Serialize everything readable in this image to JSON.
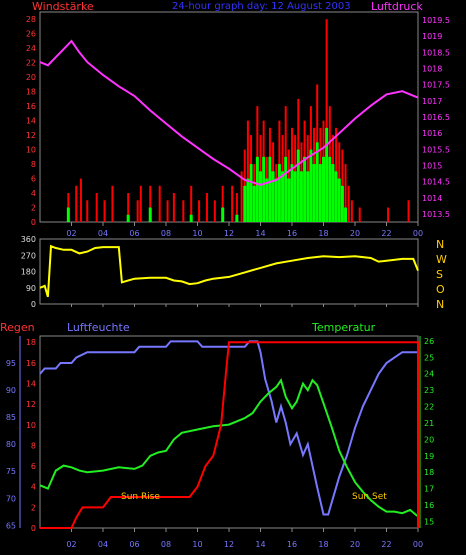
{
  "header": {
    "left_title": "Windstärke",
    "center_title": "24-hour graph day: 12 August 2003",
    "right_title": "Luftdruck"
  },
  "middle": {
    "direction_labels": [
      "N",
      "W",
      "S",
      "O",
      "N"
    ]
  },
  "bottom_header": {
    "left_title": "Regen",
    "mid_title": "Luftfeuchte",
    "right_title": "Temperatur"
  },
  "annotations": {
    "sun_rise": "Sun Rise",
    "sun_set": "Sun Set"
  },
  "colors": {
    "wind_gust": "#ff0000",
    "wind_avg": "#00ff00",
    "pressure": "#ff33ff",
    "direction": "#ffff00",
    "humidity": "#7777ff",
    "temperature": "#22ee22",
    "rain": "#ff0000",
    "axis_left_top": "#ff3333",
    "axis_right_top": "#ff33ff",
    "axis_temp": "#22ee22",
    "axis_hum": "#7777ff",
    "grid": "#444444",
    "dir_labels": "#ffcc00"
  },
  "chart_data": [
    {
      "type": "bar",
      "name": "wind",
      "x_ticks": [
        "02",
        "04",
        "06",
        "08",
        "10",
        "12",
        "14",
        "16",
        "18",
        "20",
        "22",
        "00"
      ],
      "xlim": [
        0,
        24
      ],
      "y_left_ticks": [
        0,
        2,
        4,
        6,
        8,
        10,
        12,
        14,
        16,
        18,
        20,
        22,
        24,
        26,
        28
      ],
      "ylim_left": [
        0,
        29
      ],
      "y_right_ticks": [
        1013.5,
        1014,
        1014.5,
        1015,
        1015.5,
        1016,
        1016.5,
        1017,
        1017.5,
        1018,
        1018.5,
        1019,
        1019.5
      ],
      "ylim_right": [
        1013.25,
        1019.75
      ],
      "gust_bars": [
        [
          1.8,
          4
        ],
        [
          2.3,
          5
        ],
        [
          2.6,
          6
        ],
        [
          3.0,
          3
        ],
        [
          3.6,
          4
        ],
        [
          4.1,
          3
        ],
        [
          4.6,
          5
        ],
        [
          5.6,
          4
        ],
        [
          6.2,
          3
        ],
        [
          6.4,
          5
        ],
        [
          7.0,
          5
        ],
        [
          7.6,
          5
        ],
        [
          8.1,
          3
        ],
        [
          8.5,
          4
        ],
        [
          9.1,
          3
        ],
        [
          9.6,
          5
        ],
        [
          10.1,
          3
        ],
        [
          10.6,
          4
        ],
        [
          11.1,
          3
        ],
        [
          11.6,
          5
        ],
        [
          12.2,
          5
        ],
        [
          12.5,
          4
        ],
        [
          12.8,
          7
        ],
        [
          13.0,
          10
        ],
        [
          13.2,
          14
        ],
        [
          13.4,
          12
        ],
        [
          13.6,
          8
        ],
        [
          13.8,
          16
        ],
        [
          14.0,
          12
        ],
        [
          14.2,
          14
        ],
        [
          14.4,
          9
        ],
        [
          14.6,
          13
        ],
        [
          14.8,
          11
        ],
        [
          15.0,
          8
        ],
        [
          15.2,
          14
        ],
        [
          15.4,
          12
        ],
        [
          15.6,
          16
        ],
        [
          15.8,
          10
        ],
        [
          16.0,
          13
        ],
        [
          16.2,
          12
        ],
        [
          16.4,
          17
        ],
        [
          16.6,
          11
        ],
        [
          16.8,
          14
        ],
        [
          17.0,
          12
        ],
        [
          17.2,
          16
        ],
        [
          17.4,
          13
        ],
        [
          17.6,
          19
        ],
        [
          17.8,
          13
        ],
        [
          18.0,
          14
        ],
        [
          18.2,
          28
        ],
        [
          18.4,
          16
        ],
        [
          18.6,
          12
        ],
        [
          18.8,
          13
        ],
        [
          19.0,
          11
        ],
        [
          19.2,
          10
        ],
        [
          19.4,
          8
        ],
        [
          19.6,
          5
        ],
        [
          19.8,
          3
        ],
        [
          20.3,
          2
        ],
        [
          22.1,
          2
        ],
        [
          23.4,
          3
        ]
      ],
      "avg_bars": [
        [
          1.8,
          2
        ],
        [
          5.6,
          1
        ],
        [
          7.0,
          2
        ],
        [
          9.6,
          1
        ],
        [
          11.6,
          2
        ],
        [
          12.5,
          1
        ],
        [
          13.0,
          5
        ],
        [
          13.2,
          6
        ],
        [
          13.4,
          8
        ],
        [
          13.6,
          5
        ],
        [
          13.8,
          9
        ],
        [
          14.0,
          7
        ],
        [
          14.2,
          9
        ],
        [
          14.4,
          6
        ],
        [
          14.6,
          9
        ],
        [
          14.8,
          7
        ],
        [
          15.0,
          6
        ],
        [
          15.2,
          8
        ],
        [
          15.4,
          7
        ],
        [
          15.6,
          9
        ],
        [
          15.8,
          6
        ],
        [
          16.0,
          8
        ],
        [
          16.2,
          7
        ],
        [
          16.4,
          10
        ],
        [
          16.6,
          7
        ],
        [
          16.8,
          9
        ],
        [
          17.0,
          7
        ],
        [
          17.2,
          10
        ],
        [
          17.4,
          8
        ],
        [
          17.6,
          11
        ],
        [
          17.8,
          8
        ],
        [
          18.0,
          9
        ],
        [
          18.2,
          13
        ],
        [
          18.4,
          9
        ],
        [
          18.6,
          8
        ],
        [
          18.8,
          7
        ],
        [
          19.0,
          6
        ],
        [
          19.2,
          5
        ],
        [
          19.4,
          2
        ]
      ],
      "pressure_line": [
        [
          0.0,
          1018.2
        ],
        [
          0.5,
          1018.1
        ],
        [
          1.0,
          1018.35
        ],
        [
          1.5,
          1018.6
        ],
        [
          2.0,
          1018.85
        ],
        [
          2.5,
          1018.5
        ],
        [
          3.0,
          1018.2
        ],
        [
          4.0,
          1017.8
        ],
        [
          5.0,
          1017.45
        ],
        [
          6.0,
          1017.15
        ],
        [
          7.0,
          1016.7
        ],
        [
          8.0,
          1016.3
        ],
        [
          9.0,
          1015.9
        ],
        [
          10.0,
          1015.55
        ],
        [
          11.0,
          1015.2
        ],
        [
          12.0,
          1014.9
        ],
        [
          13.0,
          1014.55
        ],
        [
          14.0,
          1014.4
        ],
        [
          15.0,
          1014.55
        ],
        [
          16.0,
          1014.9
        ],
        [
          17.0,
          1015.25
        ],
        [
          18.0,
          1015.55
        ],
        [
          19.0,
          1016.0
        ],
        [
          20.0,
          1016.45
        ],
        [
          21.0,
          1016.85
        ],
        [
          22.0,
          1017.2
        ],
        [
          23.0,
          1017.3
        ],
        [
          23.5,
          1017.2
        ],
        [
          24.0,
          1017.1
        ]
      ]
    },
    {
      "type": "line",
      "name": "wind-direction",
      "y_ticks": [
        0,
        90,
        180,
        270,
        360
      ],
      "ylim": [
        0,
        360
      ],
      "x_ticks": [
        "02",
        "04",
        "06",
        "08",
        "10",
        "12",
        "14",
        "16",
        "18",
        "20",
        "22",
        "00"
      ],
      "xlim": [
        0,
        24
      ],
      "direction_line": [
        [
          0.0,
          90
        ],
        [
          0.3,
          100
        ],
        [
          0.5,
          40
        ],
        [
          0.7,
          320
        ],
        [
          1.0,
          310
        ],
        [
          1.5,
          300
        ],
        [
          2.0,
          300
        ],
        [
          2.5,
          280
        ],
        [
          3.0,
          290
        ],
        [
          3.5,
          310
        ],
        [
          4.0,
          315
        ],
        [
          5.0,
          315
        ],
        [
          5.2,
          120
        ],
        [
          6.0,
          140
        ],
        [
          7.0,
          145
        ],
        [
          8.0,
          145
        ],
        [
          8.5,
          130
        ],
        [
          9.0,
          125
        ],
        [
          9.5,
          110
        ],
        [
          10.0,
          115
        ],
        [
          10.5,
          130
        ],
        [
          11.0,
          140
        ],
        [
          12.0,
          150
        ],
        [
          13.0,
          175
        ],
        [
          14.0,
          200
        ],
        [
          15.0,
          225
        ],
        [
          16.0,
          240
        ],
        [
          17.0,
          255
        ],
        [
          18.0,
          265
        ],
        [
          19.0,
          260
        ],
        [
          20.0,
          265
        ],
        [
          21.0,
          255
        ],
        [
          21.5,
          235
        ],
        [
          22.0,
          240
        ],
        [
          23.0,
          250
        ],
        [
          23.7,
          250
        ],
        [
          24.0,
          185
        ]
      ]
    },
    {
      "type": "line",
      "name": "rain-humidity-temperature",
      "x_ticks": [
        "02",
        "04",
        "06",
        "08",
        "10",
        "12",
        "14",
        "16",
        "18",
        "20",
        "22",
        "00"
      ],
      "xlim": [
        0,
        24
      ],
      "rain_ticks": [
        0,
        2,
        4,
        6,
        8,
        10,
        12,
        14,
        16,
        18
      ],
      "rain_lim": [
        0,
        18.6
      ],
      "humidity_ticks": [
        65,
        70,
        75,
        80,
        85,
        90,
        95
      ],
      "humidity_lim": [
        64.5,
        100
      ],
      "temperature_ticks": [
        15,
        16,
        17,
        18,
        19,
        20,
        21,
        22,
        23,
        24,
        25,
        26
      ],
      "temperature_lim": [
        14.6,
        26.3
      ],
      "rain_line": [
        [
          0.0,
          0
        ],
        [
          2.0,
          0
        ],
        [
          2.3,
          1
        ],
        [
          2.7,
          2
        ],
        [
          4.0,
          2
        ],
        [
          4.5,
          3
        ],
        [
          7.0,
          3
        ],
        [
          9.5,
          3
        ],
        [
          10.0,
          4
        ],
        [
          10.5,
          6
        ],
        [
          11.0,
          7
        ],
        [
          11.5,
          10
        ],
        [
          11.8,
          15
        ],
        [
          12.0,
          18
        ],
        [
          24.0,
          18
        ],
        [
          24.0,
          0
        ]
      ],
      "humidity_line": [
        [
          0.0,
          93
        ],
        [
          0.3,
          94
        ],
        [
          1.0,
          94
        ],
        [
          1.3,
          95
        ],
        [
          2.0,
          95
        ],
        [
          2.3,
          96
        ],
        [
          3.0,
          97
        ],
        [
          6.0,
          97
        ],
        [
          6.3,
          98
        ],
        [
          8.0,
          98
        ],
        [
          8.3,
          99
        ],
        [
          10.0,
          99
        ],
        [
          10.3,
          98
        ],
        [
          13.0,
          98
        ],
        [
          13.3,
          99
        ],
        [
          13.8,
          99
        ],
        [
          14.0,
          97
        ],
        [
          14.3,
          92
        ],
        [
          14.7,
          88
        ],
        [
          15.0,
          84
        ],
        [
          15.3,
          87
        ],
        [
          15.6,
          84
        ],
        [
          15.9,
          80
        ],
        [
          16.3,
          82
        ],
        [
          16.7,
          78
        ],
        [
          17.0,
          80
        ],
        [
          17.3,
          76
        ],
        [
          17.6,
          72
        ],
        [
          18.0,
          67
        ],
        [
          18.3,
          67
        ],
        [
          18.6,
          70
        ],
        [
          19.0,
          74
        ],
        [
          19.5,
          78
        ],
        [
          20.0,
          83
        ],
        [
          20.5,
          87
        ],
        [
          21.0,
          90
        ],
        [
          21.5,
          93
        ],
        [
          22.0,
          95
        ],
        [
          22.5,
          96
        ],
        [
          23.0,
          97
        ],
        [
          24.0,
          97
        ]
      ],
      "temperature_line": [
        [
          0.0,
          17.2
        ],
        [
          0.5,
          17.0
        ],
        [
          1.0,
          18.1
        ],
        [
          1.5,
          18.4
        ],
        [
          2.0,
          18.3
        ],
        [
          2.5,
          18.1
        ],
        [
          3.0,
          18.0
        ],
        [
          4.0,
          18.1
        ],
        [
          5.0,
          18.3
        ],
        [
          6.0,
          18.2
        ],
        [
          6.5,
          18.4
        ],
        [
          7.0,
          19.0
        ],
        [
          7.5,
          19.2
        ],
        [
          8.0,
          19.3
        ],
        [
          8.5,
          20.0
        ],
        [
          9.0,
          20.4
        ],
        [
          10.0,
          20.6
        ],
        [
          11.0,
          20.8
        ],
        [
          12.0,
          20.9
        ],
        [
          13.0,
          21.3
        ],
        [
          13.5,
          21.6
        ],
        [
          14.0,
          22.3
        ],
        [
          14.5,
          22.8
        ],
        [
          15.0,
          23.2
        ],
        [
          15.3,
          23.6
        ],
        [
          15.6,
          22.6
        ],
        [
          16.0,
          21.9
        ],
        [
          16.3,
          22.3
        ],
        [
          16.7,
          23.4
        ],
        [
          17.0,
          23.0
        ],
        [
          17.3,
          23.6
        ],
        [
          17.6,
          23.3
        ],
        [
          18.0,
          22.2
        ],
        [
          18.5,
          20.8
        ],
        [
          19.0,
          19.3
        ],
        [
          19.5,
          18.3
        ],
        [
          20.0,
          17.4
        ],
        [
          20.5,
          16.8
        ],
        [
          21.0,
          16.3
        ],
        [
          21.5,
          15.9
        ],
        [
          22.0,
          15.6
        ],
        [
          22.5,
          15.6
        ],
        [
          23.0,
          15.5
        ],
        [
          23.5,
          15.7
        ],
        [
          24.0,
          15.3
        ]
      ]
    }
  ]
}
